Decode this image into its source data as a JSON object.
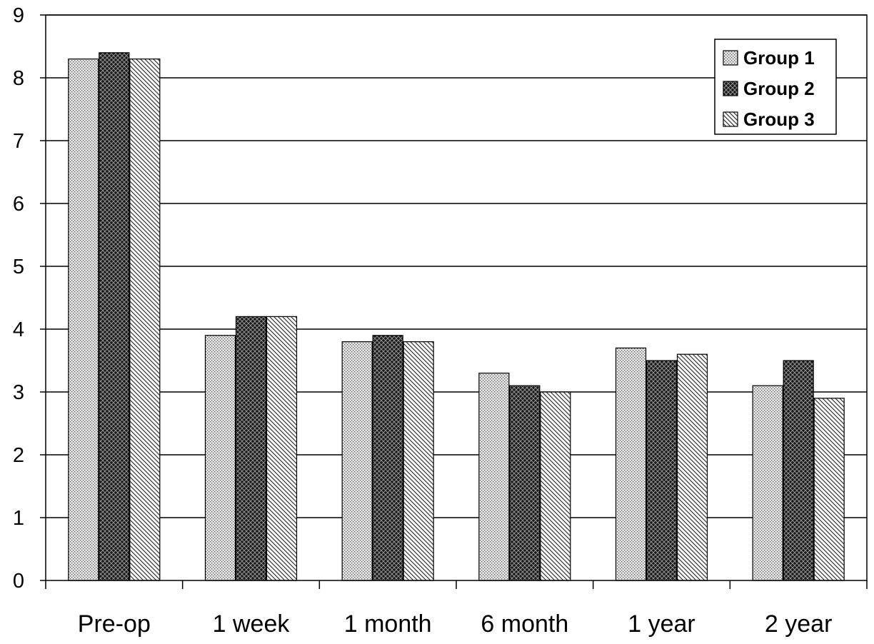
{
  "chart_data": {
    "type": "bar",
    "title": "",
    "xlabel": "",
    "ylabel": "",
    "categories": [
      "Pre-op",
      "1 week",
      "1 month",
      "6 month",
      "1 year",
      "2 year"
    ],
    "series": [
      {
        "name": "Group 1",
        "values": [
          8.3,
          3.9,
          3.8,
          3.3,
          3.7,
          3.1
        ],
        "pattern": "dots"
      },
      {
        "name": "Group 2",
        "values": [
          8.4,
          4.2,
          3.9,
          3.1,
          3.5,
          3.5
        ],
        "pattern": "dark-crosshatch"
      },
      {
        "name": "Group 3",
        "values": [
          8.3,
          4.2,
          3.8,
          3.0,
          3.6,
          2.9
        ],
        "pattern": "diagonal-stripes"
      }
    ],
    "ylim": [
      0,
      9
    ],
    "yticks": [
      0,
      1,
      2,
      3,
      4,
      5,
      6,
      7,
      8,
      9
    ],
    "grid": true,
    "legend_position": "top-right",
    "colors": {
      "background": "#ffffff",
      "grid": "#000000",
      "bar_outline": "#000000"
    }
  }
}
